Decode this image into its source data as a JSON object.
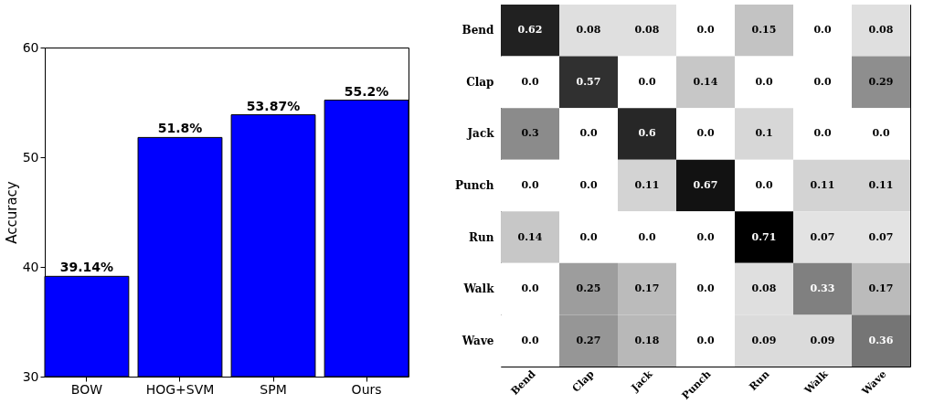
{
  "chart_data": [
    {
      "type": "bar",
      "ylabel": "Accuracy",
      "categories": [
        "BOW",
        "HOG+SVM",
        "SPM",
        "Ours"
      ],
      "values": [
        39.14,
        51.8,
        53.87,
        55.2
      ],
      "value_labels": [
        "39.14%",
        "51.8%",
        "53.87%",
        "55.2%"
      ],
      "color": "#0000ff",
      "ylim": [
        30,
        60
      ],
      "yticks": [
        30,
        40,
        50,
        60
      ],
      "grid": false
    },
    {
      "type": "heatmap",
      "categories": [
        "Bend",
        "Clap",
        "Jack",
        "Punch",
        "Run",
        "Walk",
        "Wave"
      ],
      "y_categories": [
        "Bend",
        "Clap",
        "Jack",
        "Punch",
        "Run",
        "Walk",
        "Wave"
      ],
      "cells": [
        [
          0.62,
          0.08,
          0.08,
          0,
          0.15,
          0,
          0.08
        ],
        [
          0,
          0.57,
          0,
          0.14,
          0,
          0,
          0.29
        ],
        [
          0.3,
          0,
          0.6,
          0,
          0.1,
          0,
          0
        ],
        [
          0,
          0,
          0.11,
          0.67,
          0,
          0.11,
          0.11
        ],
        [
          0.14,
          0,
          0,
          0,
          0.71,
          0.07,
          0.07
        ],
        [
          0,
          0.25,
          0.17,
          0,
          0.08,
          0.33,
          0.17
        ],
        [
          0,
          0.27,
          0.18,
          0,
          0.09,
          0.09,
          0.36
        ]
      ],
      "cell_labels": [
        [
          "0.62",
          "0.08",
          "0.08",
          "0.0",
          "0.15",
          "0.0",
          "0.08"
        ],
        [
          "0.0",
          "0.57",
          "0.0",
          "0.14",
          "0.0",
          "0.0",
          "0.29"
        ],
        [
          "0.3",
          "0.0",
          "0.6",
          "0.0",
          "0.1",
          "0.0",
          "0.0"
        ],
        [
          "0.0",
          "0.0",
          "0.11",
          "0.67",
          "0.0",
          "0.11",
          "0.11"
        ],
        [
          "0.14",
          "0.0",
          "0.0",
          "0.0",
          "0.71",
          "0.07",
          "0.07"
        ],
        [
          "0.0",
          "0.25",
          "0.17",
          "0.0",
          "0.08",
          "0.33",
          "0.17"
        ],
        [
          "0.0",
          "0.27",
          "0.18",
          "0.0",
          "0.09",
          "0.09",
          "0.36"
        ]
      ]
    }
  ]
}
